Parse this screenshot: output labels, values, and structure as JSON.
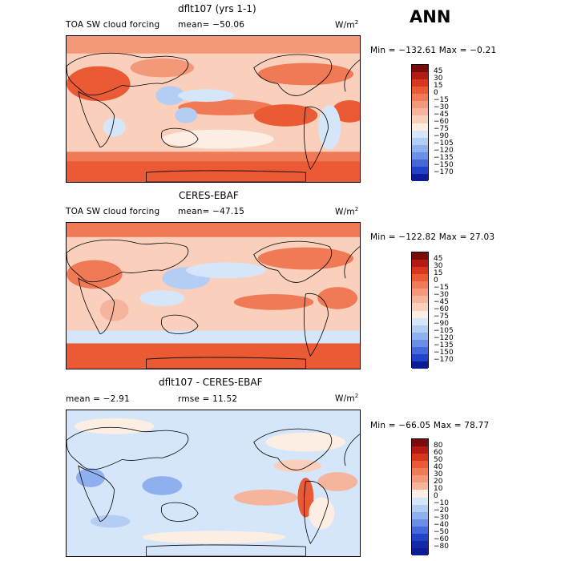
{
  "header": {
    "season": "ANN"
  },
  "panels": [
    {
      "title": "dflt107 (yrs 1-1)",
      "variable": "TOA SW cloud forcing",
      "mean": "mean= −50.06",
      "units": "W/m",
      "units_exp": "2",
      "minmax": "Min = −132.61  Max =  −0.21",
      "colorbar": {
        "labels": [
          "45",
          "30",
          "15",
          "0",
          "−15",
          "−30",
          "−45",
          "−60",
          "−75",
          "−90",
          "−105",
          "−120",
          "−135",
          "−150",
          "−170"
        ],
        "colors": [
          "#7a0b0b",
          "#b21a12",
          "#d8361d",
          "#ea5a35",
          "#f07a55",
          "#f4987a",
          "#f7b49c",
          "#fad0bd",
          "#fdeee4",
          "#d6e6fa",
          "#b4cdf4",
          "#8eb0ef",
          "#6a8fe6",
          "#4569da",
          "#2043c8",
          "#0c1c96"
        ]
      }
    },
    {
      "title": "CERES-EBAF",
      "variable": "TOA SW cloud forcing",
      "mean": "mean= −47.15",
      "units": "W/m",
      "units_exp": "2",
      "minmax": "Min = −122.82  Max =  27.03",
      "colorbar": {
        "labels": [
          "45",
          "30",
          "15",
          "0",
          "−15",
          "−30",
          "−45",
          "−60",
          "−75",
          "−90",
          "−105",
          "−120",
          "−135",
          "−150",
          "−170"
        ],
        "colors": [
          "#7a0b0b",
          "#b21a12",
          "#d8361d",
          "#ea5a35",
          "#f07a55",
          "#f4987a",
          "#f7b49c",
          "#fad0bd",
          "#fdeee4",
          "#d6e6fa",
          "#b4cdf4",
          "#8eb0ef",
          "#6a8fe6",
          "#4569da",
          "#2043c8",
          "#0c1c96"
        ]
      }
    },
    {
      "title": "dflt107 - CERES-EBAF",
      "mean": "mean =   −2.91",
      "rmse": "rmse =   11.52",
      "units": "W/m",
      "units_exp": "2",
      "minmax": "Min = −66.05  Max =  78.77",
      "colorbar": {
        "labels": [
          "80",
          "60",
          "50",
          "40",
          "30",
          "20",
          "10",
          "0",
          "−10",
          "−20",
          "−30",
          "−40",
          "−50",
          "−60",
          "−80"
        ],
        "colors": [
          "#7a0b0b",
          "#b21a12",
          "#d8361d",
          "#ea5a35",
          "#f07a55",
          "#f4987a",
          "#f7b49c",
          "#fdeee4",
          "#d6e6fa",
          "#b4cdf4",
          "#8eb0ef",
          "#6a8fe6",
          "#4569da",
          "#2043c8",
          "#1428aa",
          "#0c1c96"
        ]
      }
    }
  ]
}
